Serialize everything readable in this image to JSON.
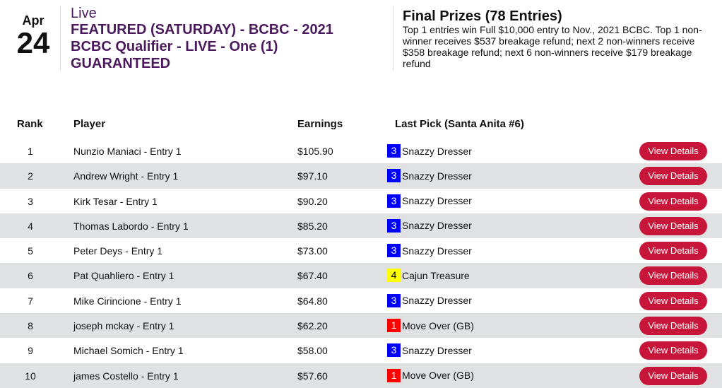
{
  "date": {
    "month": "Apr",
    "day": "24"
  },
  "event": {
    "status": "Live",
    "title": "FEATURED (SATURDAY) - BCBC - 2021 BCBC Qualifier - LIVE - One (1) GUARANTEED"
  },
  "prizes": {
    "title": "Final Prizes (78 Entries)",
    "text": "Top 1 entries win Full $10,000 entry to Nov., 2021 BCBC. Top 1 non-winner receives $537 breakage refund; next 2 non-winners receive $358 breakage refund; next 6 non-winners receive $179 breakage refund"
  },
  "table": {
    "headers": {
      "rank": "Rank",
      "player": "Player",
      "earnings": "Earnings",
      "pick": "Last Pick (Santa Anita #6)"
    },
    "button_label": "View Details",
    "rows": [
      {
        "rank": "1",
        "player": "Nunzio Maniaci - Entry 1",
        "earnings": "$105.90",
        "num": "3",
        "horse": "Snazzy Dresser",
        "color": "#0000ff",
        "text_color": "#ffffff"
      },
      {
        "rank": "2",
        "player": "Andrew Wright - Entry 1",
        "earnings": "$97.10",
        "num": "3",
        "horse": "Snazzy Dresser",
        "color": "#0000ff",
        "text_color": "#ffffff"
      },
      {
        "rank": "3",
        "player": "Kirk Tesar - Entry 1",
        "earnings": "$90.20",
        "num": "3",
        "horse": "Snazzy Dresser",
        "color": "#0000ff",
        "text_color": "#ffffff"
      },
      {
        "rank": "4",
        "player": "Thomas Labordo - Entry 1",
        "earnings": "$85.20",
        "num": "3",
        "horse": "Snazzy Dresser",
        "color": "#0000ff",
        "text_color": "#ffffff"
      },
      {
        "rank": "5",
        "player": "Peter Deys - Entry 1",
        "earnings": "$73.00",
        "num": "3",
        "horse": "Snazzy Dresser",
        "color": "#0000ff",
        "text_color": "#ffffff"
      },
      {
        "rank": "6",
        "player": "Pat Quahliero - Entry 1",
        "earnings": "$67.40",
        "num": "4",
        "horse": "Cajun Treasure",
        "color": "#ffff00",
        "text_color": "#000000"
      },
      {
        "rank": "7",
        "player": "Mike Cirincione - Entry 1",
        "earnings": "$64.80",
        "num": "3",
        "horse": "Snazzy Dresser",
        "color": "#0000ff",
        "text_color": "#ffffff"
      },
      {
        "rank": "8",
        "player": "joseph mckay - Entry 1",
        "earnings": "$62.20",
        "num": "1",
        "horse": "Move Over (GB)",
        "color": "#ff0000",
        "text_color": "#ffffff"
      },
      {
        "rank": "9",
        "player": "Michael Somich - Entry 1",
        "earnings": "$58.00",
        "num": "3",
        "horse": "Snazzy Dresser",
        "color": "#0000ff",
        "text_color": "#ffffff"
      },
      {
        "rank": "10",
        "player": "james Costello - Entry 1",
        "earnings": "$57.60",
        "num": "1",
        "horse": "Move Over (GB)",
        "color": "#ff0000",
        "text_color": "#ffffff"
      }
    ]
  }
}
